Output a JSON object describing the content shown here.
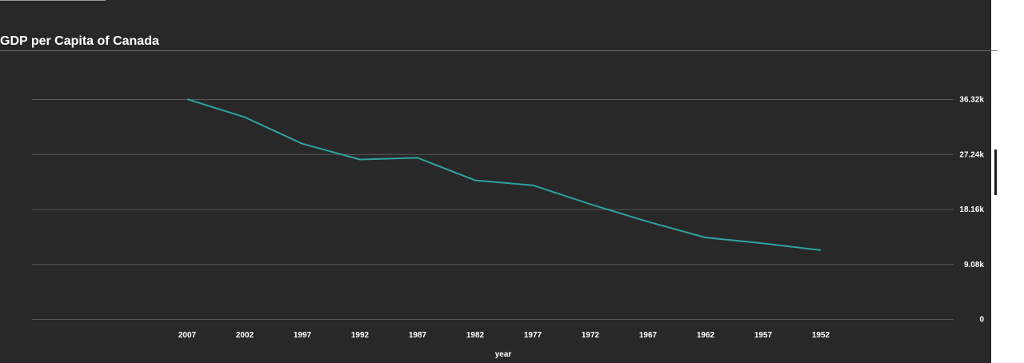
{
  "chart_data": {
    "type": "line",
    "title": "GDP per Capita of Canada",
    "xlabel": "year",
    "ylabel": "",
    "x": [
      "2007",
      "2002",
      "1997",
      "1992",
      "1987",
      "1982",
      "1977",
      "1972",
      "1967",
      "1962",
      "1957",
      "1952"
    ],
    "series": [
      {
        "values": [
          36319,
          33329,
          28955,
          26343,
          26627,
          22899,
          22091,
          18971,
          16077,
          13463,
          12490,
          11367
        ]
      }
    ],
    "y_ticks": [
      "0",
      "9.08k",
      "18.16k",
      "27.24k",
      "36.32k"
    ],
    "y_tick_values": [
      0,
      9080,
      18160,
      27240,
      36320
    ],
    "ylim": [
      0,
      36320
    ],
    "y_axis_side": "right",
    "grid": true,
    "legend": "none",
    "colors": {
      "line": "#2ea2a3",
      "grid": "#595959",
      "text": "#ffffff",
      "background": "#282828"
    }
  }
}
